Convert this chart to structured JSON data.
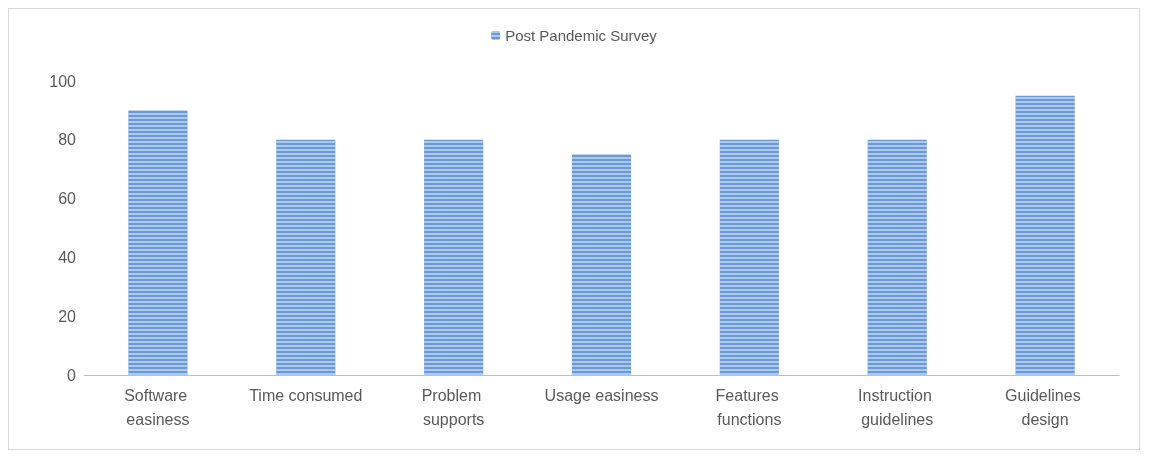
{
  "chart_data": {
    "type": "bar",
    "categories": [
      "Software easiness",
      "Time consumed",
      "Problem supports",
      "Usage easiness",
      "Features functions",
      "Instruction guidelines",
      "Guidelines design"
    ],
    "series": [
      {
        "name": "Post Pandemic Survey",
        "color": "#6a9ad6",
        "values": [
          90,
          80,
          80,
          75,
          80,
          80,
          95
        ]
      }
    ],
    "ylim": [
      0,
      100
    ],
    "yticks": [
      0,
      20,
      40,
      60,
      80,
      100
    ],
    "grid": false,
    "legend": "top"
  }
}
